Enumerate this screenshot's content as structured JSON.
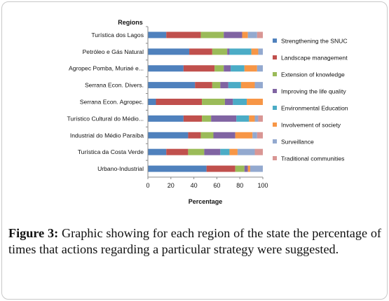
{
  "chart_data": {
    "type": "bar",
    "orientation": "horizontal",
    "stacked": true,
    "y_title": "Regions",
    "xlabel": "Percentage",
    "xlim": [
      0,
      100
    ],
    "xticks": [
      0,
      20,
      40,
      60,
      80,
      100
    ],
    "grid": false,
    "legend_position": "right",
    "categories": [
      "Turística dos Lagos",
      "Petróleo e Gás Natural",
      "Agropec Pomba, Muriaé e...",
      "Serrana Econ. Divers.",
      "Serrana Econ. Agropec.",
      "Turístico Cultural do Médio...",
      "Industrial do Médio Paraíba",
      "Turística da Costa Verde",
      "Urbano-Industrial"
    ],
    "series": [
      {
        "name": "Strengthening the SNUC",
        "color": "#4f81bd",
        "values": [
          16,
          36,
          31,
          41,
          7,
          31,
          35,
          16,
          51
        ]
      },
      {
        "name": "Landscape management",
        "color": "#c0504d",
        "values": [
          30,
          20,
          27,
          15,
          40,
          16,
          11,
          19,
          25
        ]
      },
      {
        "name": "Extension of knowledge",
        "color": "#9bbb59",
        "values": [
          20,
          13,
          8,
          7,
          20,
          8,
          11,
          14,
          8
        ]
      },
      {
        "name": "Improving the life quality",
        "color": "#8064a2",
        "values": [
          16,
          2,
          6,
          7,
          7,
          22,
          19,
          14,
          3
        ]
      },
      {
        "name": "Environmental Education",
        "color": "#4bacc6",
        "values": [
          0,
          19,
          12,
          11,
          12,
          11,
          0,
          8,
          0
        ]
      },
      {
        "name": "Involvement of society",
        "color": "#f79646",
        "values": [
          5,
          6,
          11,
          12,
          14,
          5,
          15,
          7,
          2
        ]
      },
      {
        "name": "Surveillance",
        "color": "#93a9cf",
        "values": [
          8,
          4,
          5,
          7,
          0,
          3,
          4,
          15,
          11
        ]
      },
      {
        "name": "Traditional communities",
        "color": "#d99694",
        "values": [
          5,
          0,
          0,
          0,
          0,
          4,
          5,
          7,
          0
        ]
      }
    ]
  },
  "caption": {
    "label": "Figure 3:",
    "text": " Graphic showing for each region of the state the percentage of times that actions regarding a particular strategy were suggested."
  }
}
